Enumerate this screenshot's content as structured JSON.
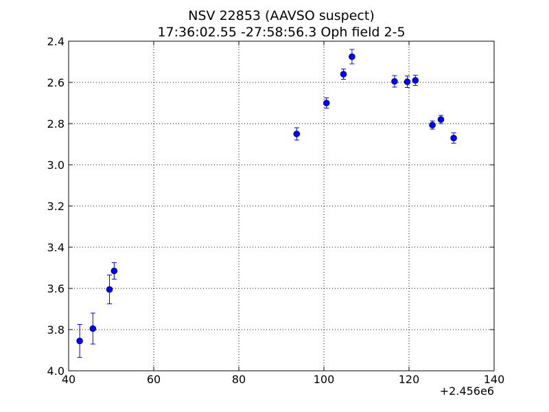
{
  "chart_data": {
    "type": "scatter",
    "title": "NSV 22853 (AAVSO suspect)",
    "subtitle": "17:36:02.55 -27:58:56.3 Oph field 2-5",
    "x_offset_label": "+2.456e6",
    "xlim": [
      40,
      140
    ],
    "ylim": [
      2.4,
      4.0
    ],
    "y_inverted": true,
    "grid": true,
    "x_ticks": [
      {
        "value": 40,
        "label": "40"
      },
      {
        "value": 60,
        "label": "60"
      },
      {
        "value": 80,
        "label": "80"
      },
      {
        "value": 100,
        "label": "100"
      },
      {
        "value": 120,
        "label": "120"
      },
      {
        "value": 140,
        "label": "140"
      }
    ],
    "y_ticks": [
      {
        "value": 2.4,
        "label": "2.4"
      },
      {
        "value": 2.6,
        "label": "2.6"
      },
      {
        "value": 2.8,
        "label": "2.8"
      },
      {
        "value": 3.0,
        "label": "3.0"
      },
      {
        "value": 3.2,
        "label": "3.2"
      },
      {
        "value": 3.4,
        "label": "3.4"
      },
      {
        "value": 3.6,
        "label": "3.6"
      },
      {
        "value": 3.8,
        "label": "3.8"
      },
      {
        "value": 4.0,
        "label": "4.0"
      }
    ],
    "marker_color": "#0000ff",
    "points": [
      {
        "x": 42.6,
        "y": 3.855,
        "err": 0.08
      },
      {
        "x": 45.7,
        "y": 3.795,
        "err": 0.075
      },
      {
        "x": 49.6,
        "y": 3.605,
        "err": 0.07
      },
      {
        "x": 50.7,
        "y": 3.515,
        "err": 0.04
      },
      {
        "x": 93.6,
        "y": 2.85,
        "err": 0.03
      },
      {
        "x": 100.6,
        "y": 2.7,
        "err": 0.025
      },
      {
        "x": 104.6,
        "y": 2.56,
        "err": 0.025
      },
      {
        "x": 106.6,
        "y": 2.475,
        "err": 0.035
      },
      {
        "x": 116.6,
        "y": 2.595,
        "err": 0.028
      },
      {
        "x": 119.6,
        "y": 2.597,
        "err": 0.028
      },
      {
        "x": 121.5,
        "y": 2.59,
        "err": 0.025
      },
      {
        "x": 125.5,
        "y": 2.807,
        "err": 0.02
      },
      {
        "x": 127.5,
        "y": 2.78,
        "err": 0.02
      },
      {
        "x": 130.5,
        "y": 2.87,
        "err": 0.025
      }
    ]
  }
}
